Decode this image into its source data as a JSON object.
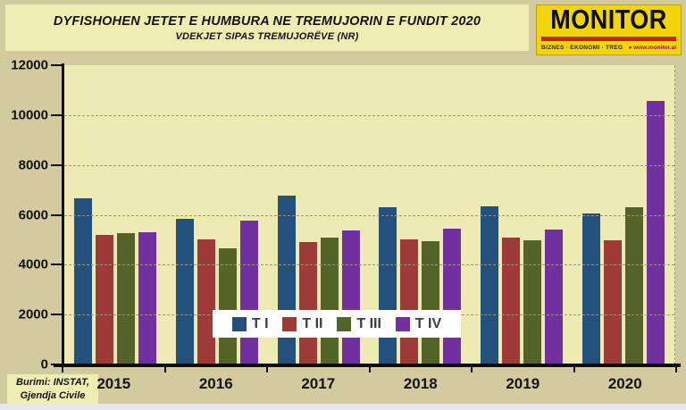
{
  "header": {
    "title": "DYFISHOHEN JETET E HUMBURA NE TREMUJORIN E FUNDIT 2020",
    "subtitle": "VDEKJET SIPAS TREMUJORËVE (NR)"
  },
  "logo": {
    "name": "MONITOR",
    "tagline": "BIZNES · EKONOMI · TREG",
    "website": "www.monitor.al",
    "bg_color": "#F2D40A",
    "bar_color": "#CE2127"
  },
  "source": {
    "line1": "Burimi: INSTAT,",
    "line2": "Gjendja Civile"
  },
  "colors": {
    "outer_background": "#D2CBA0",
    "plot_background": "#EDEAB4",
    "panel_background": "#EFECB4",
    "gridline": "#9a9478",
    "axis": "#0d0d0d"
  },
  "chart_data": {
    "type": "bar",
    "title": "DYFISHOHEN JETET E HUMBURA NE TREMUJORIN E FUNDIT 2020",
    "subtitle": "VDEKJET SIPAS TREMUJORËVE (NR)",
    "xlabel": "",
    "ylabel": "",
    "ylim": [
      0,
      12000
    ],
    "y_ticks": [
      12000,
      10000,
      8000,
      6000,
      4000,
      2000,
      0
    ],
    "grid": "horizontal-dashed",
    "legend_position": "center-overlay",
    "categories": [
      "2015",
      "2016",
      "2017",
      "2018",
      "2019",
      "2020"
    ],
    "series": [
      {
        "name": "T I",
        "color": "#24507C",
        "values": [
          6650,
          5850,
          6780,
          6310,
          6350,
          6070
        ]
      },
      {
        "name": "T II",
        "color": "#9E3B38",
        "values": [
          5190,
          5030,
          4900,
          5030,
          5100,
          4970
        ]
      },
      {
        "name": "T III",
        "color": "#546327",
        "values": [
          5250,
          4670,
          5080,
          4950,
          4990,
          6290
        ]
      },
      {
        "name": "T IV",
        "color": "#7030A0",
        "values": [
          5300,
          5750,
          5370,
          5430,
          5400,
          10560
        ]
      }
    ]
  }
}
